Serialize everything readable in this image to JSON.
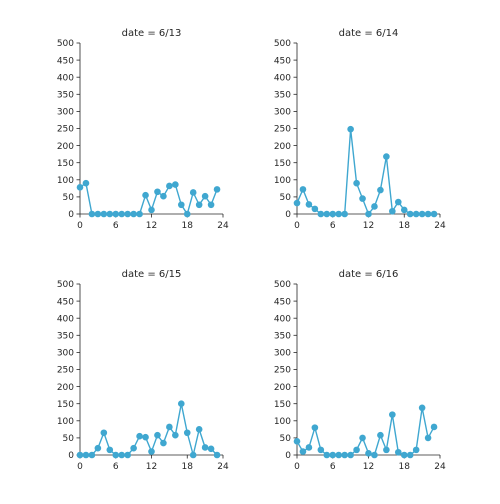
{
  "chart_data": [
    {
      "type": "line",
      "title": "date = 6/13",
      "x": [
        0,
        1,
        2,
        3,
        4,
        5,
        6,
        7,
        8,
        9,
        10,
        11,
        12,
        13,
        14,
        15,
        16,
        17,
        18,
        19,
        20,
        21,
        22,
        23
      ],
      "values": [
        78,
        90,
        0,
        0,
        0,
        0,
        0,
        0,
        0,
        0,
        0,
        55,
        12,
        65,
        52,
        82,
        86,
        27,
        0,
        63,
        27,
        52,
        27,
        72
      ],
      "xticks": [
        0,
        6,
        12,
        18,
        24
      ],
      "yticks": [
        0,
        50,
        100,
        150,
        200,
        250,
        300,
        350,
        400,
        450,
        500
      ],
      "xlim": [
        0,
        24
      ],
      "ylim": [
        0,
        500
      ],
      "color": "#3fa7d0"
    },
    {
      "type": "line",
      "title": "date = 6/14",
      "x": [
        0,
        1,
        2,
        3,
        4,
        5,
        6,
        7,
        8,
        9,
        10,
        11,
        12,
        13,
        14,
        15,
        16,
        17,
        18,
        19,
        20,
        21,
        22,
        23
      ],
      "values": [
        32,
        72,
        28,
        15,
        0,
        0,
        0,
        0,
        0,
        248,
        90,
        45,
        0,
        22,
        70,
        168,
        8,
        35,
        12,
        0,
        0,
        0,
        0,
        0
      ],
      "xticks": [
        0,
        6,
        12,
        18,
        24
      ],
      "yticks": [
        0,
        50,
        100,
        150,
        200,
        250,
        300,
        350,
        400,
        450,
        500
      ],
      "xlim": [
        0,
        24
      ],
      "ylim": [
        0,
        500
      ],
      "color": "#3fa7d0"
    },
    {
      "type": "line",
      "title": "date = 6/15",
      "x": [
        0,
        1,
        2,
        3,
        4,
        5,
        6,
        7,
        8,
        9,
        10,
        11,
        12,
        13,
        14,
        15,
        16,
        17,
        18,
        19,
        20,
        21,
        22,
        23
      ],
      "values": [
        0,
        0,
        0,
        20,
        65,
        15,
        0,
        0,
        0,
        20,
        55,
        52,
        10,
        58,
        35,
        82,
        58,
        150,
        65,
        0,
        75,
        22,
        18,
        0
      ],
      "xticks": [
        0,
        6,
        12,
        18,
        24
      ],
      "yticks": [
        0,
        50,
        100,
        150,
        200,
        250,
        300,
        350,
        400,
        450,
        500
      ],
      "xlim": [
        0,
        24
      ],
      "ylim": [
        0,
        500
      ],
      "color": "#3fa7d0"
    },
    {
      "type": "line",
      "title": "date = 6/16",
      "x": [
        0,
        1,
        2,
        3,
        4,
        5,
        6,
        7,
        8,
        9,
        10,
        11,
        12,
        13,
        14,
        15,
        16,
        17,
        18,
        19,
        20,
        21,
        22,
        23
      ],
      "values": [
        40,
        10,
        22,
        80,
        15,
        0,
        0,
        0,
        0,
        0,
        15,
        50,
        5,
        0,
        58,
        15,
        118,
        8,
        0,
        0,
        15,
        138,
        50,
        82
      ],
      "xticks": [
        0,
        6,
        12,
        18,
        24
      ],
      "yticks": [
        0,
        50,
        100,
        150,
        200,
        250,
        300,
        350,
        400,
        450,
        500
      ],
      "xlim": [
        0,
        24
      ],
      "ylim": [
        0,
        500
      ],
      "color": "#3fa7d0"
    }
  ]
}
